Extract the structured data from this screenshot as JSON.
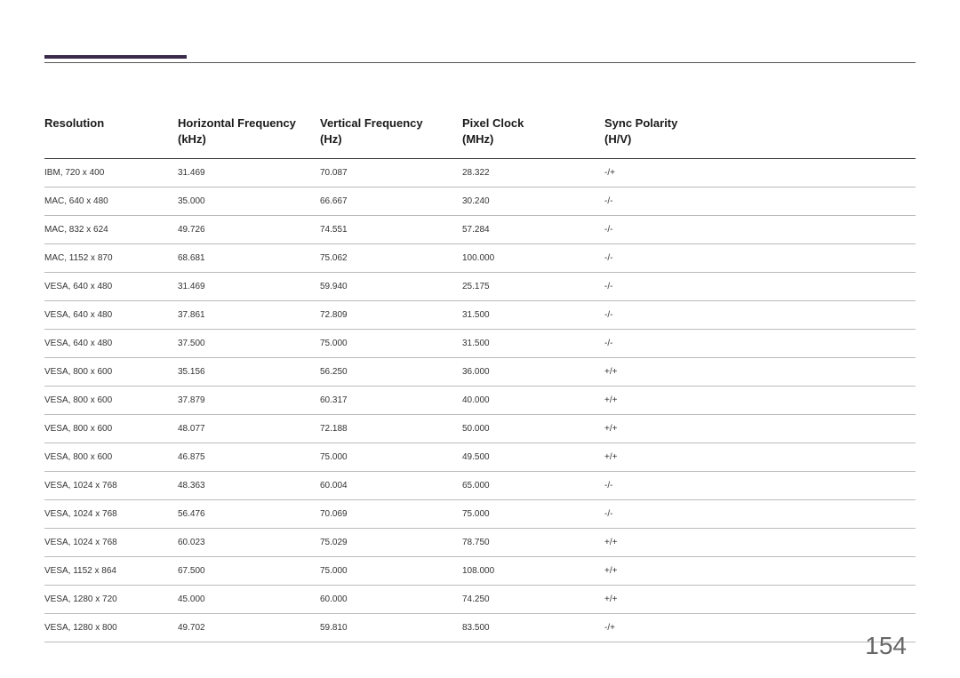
{
  "page_number": "154",
  "styling": {
    "accent_color": "#3b2a4a",
    "background_color": "#ffffff",
    "header_font_size": 13,
    "cell_font_size": 10,
    "page_number_font_size": 28,
    "page_number_color": "#666",
    "header_border_color": "#333",
    "row_border_color": "#bbb"
  },
  "table": {
    "columns": [
      {
        "main": "Resolution",
        "unit": ""
      },
      {
        "main": "Horizontal Frequency",
        "unit": "(kHz)"
      },
      {
        "main": "Vertical Frequency",
        "unit": "(Hz)"
      },
      {
        "main": "Pixel Clock",
        "unit": "(MHz)"
      },
      {
        "main": "Sync Polarity",
        "unit": "(H/V)"
      }
    ],
    "rows": [
      [
        "IBM, 720 x 400",
        "31.469",
        "70.087",
        "28.322",
        "-/+"
      ],
      [
        "MAC, 640 x 480",
        "35.000",
        "66.667",
        "30.240",
        "-/-"
      ],
      [
        "MAC, 832 x 624",
        "49.726",
        "74.551",
        "57.284",
        "-/-"
      ],
      [
        "MAC, 1152 x 870",
        "68.681",
        "75.062",
        "100.000",
        "-/-"
      ],
      [
        "VESA, 640 x 480",
        "31.469",
        "59.940",
        "25.175",
        "-/-"
      ],
      [
        "VESA, 640 x 480",
        "37.861",
        "72.809",
        "31.500",
        "-/-"
      ],
      [
        "VESA, 640 x 480",
        "37.500",
        "75.000",
        "31.500",
        "-/-"
      ],
      [
        "VESA, 800 x 600",
        "35.156",
        "56.250",
        "36.000",
        "+/+"
      ],
      [
        "VESA, 800 x 600",
        "37.879",
        "60.317",
        "40.000",
        "+/+"
      ],
      [
        "VESA, 800 x 600",
        "48.077",
        "72.188",
        "50.000",
        "+/+"
      ],
      [
        "VESA, 800 x 600",
        "46.875",
        "75.000",
        "49.500",
        "+/+"
      ],
      [
        "VESA, 1024 x 768",
        "48.363",
        "60.004",
        "65.000",
        "-/-"
      ],
      [
        "VESA, 1024 x 768",
        "56.476",
        "70.069",
        "75.000",
        "-/-"
      ],
      [
        "VESA, 1024 x 768",
        "60.023",
        "75.029",
        "78.750",
        "+/+"
      ],
      [
        "VESA, 1152 x 864",
        "67.500",
        "75.000",
        "108.000",
        "+/+"
      ],
      [
        "VESA, 1280 x 720",
        "45.000",
        "60.000",
        "74.250",
        "+/+"
      ],
      [
        "VESA, 1280 x 800",
        "49.702",
        "59.810",
        "83.500",
        "-/+"
      ]
    ]
  }
}
